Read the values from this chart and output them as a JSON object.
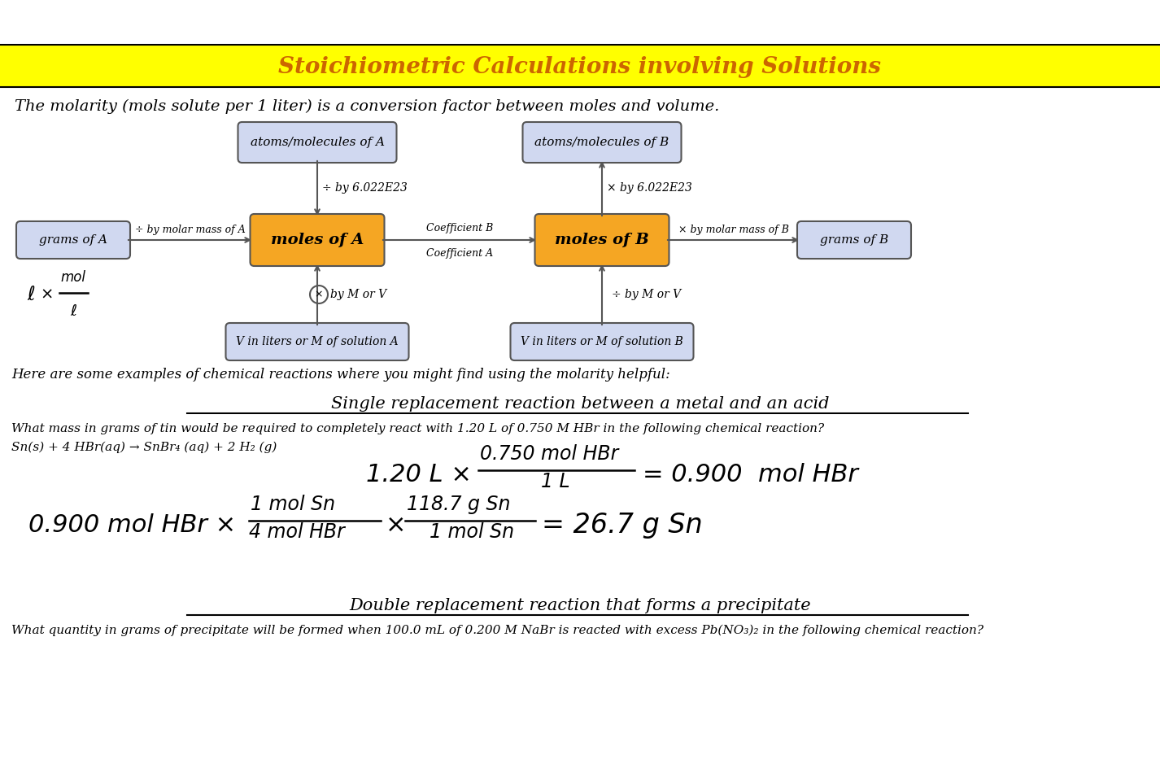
{
  "title": "Stoichiometric Calculations involving Solutions",
  "title_color": "#cc6600",
  "title_bg": "#ffff00",
  "subtitle": "The molarity (mols solute per 1 liter) is a conversion factor between moles and volume.",
  "box_orange_color": "#f5a623",
  "box_blue_color": "#d0d8f0",
  "box_stroke": "#555555",
  "arrow_color": "#555555",
  "section1_heading": "Single replacement reaction between a metal and an acid",
  "section1_q": "What mass in grams of tin would be required to completely react with 1.20 L of 0.750 M HBr in the following chemical reaction?",
  "section1_rxn": "Sn(s) + 4 HBr(aq) → SnBr₄ (aq) + 2 H₂ (g)",
  "section2_heading": "Double replacement reaction that forms a precipitate",
  "section2_q": "What quantity in grams of precipitate will be formed when 100.0 mL of 0.200 M NaBr is reacted with excess Pb(NO₃)₂ in the following chemical reaction?"
}
